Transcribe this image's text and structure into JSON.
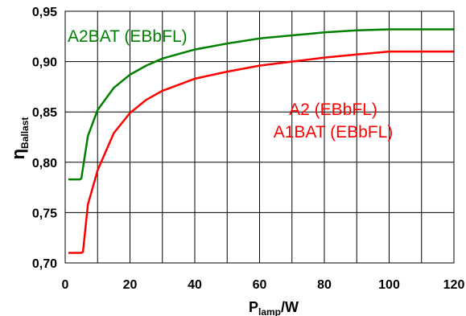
{
  "chart_data": {
    "type": "line",
    "title": "",
    "xlabel_main": "P",
    "xlabel_sub": "lamp",
    "xlabel_unit": "/W",
    "ylabel_main": "η",
    "ylabel_sub": "Ballast",
    "xlim": [
      0,
      120
    ],
    "ylim": [
      0.7,
      0.95
    ],
    "x_ticks": [
      0,
      20,
      40,
      60,
      80,
      100,
      120
    ],
    "x_tick_labels": [
      "0",
      "20",
      "40",
      "60",
      "80",
      "100",
      "120"
    ],
    "y_ticks": [
      0.7,
      0.75,
      0.8,
      0.85,
      0.9,
      0.95
    ],
    "y_tick_labels": [
      "0,70",
      "0,75",
      "0,80",
      "0,85",
      "0,90",
      "0,95"
    ],
    "grid": true,
    "series": [
      {
        "color": "#008000",
        "x": [
          1,
          4.6,
          5,
          7,
          10,
          15,
          20,
          25,
          30,
          40,
          50,
          60,
          70,
          80,
          90,
          100,
          110,
          120
        ],
        "y": [
          0.783,
          0.783,
          0.784,
          0.826,
          0.852,
          0.874,
          0.887,
          0.896,
          0.903,
          0.912,
          0.918,
          0.923,
          0.926,
          0.929,
          0.931,
          0.932,
          0.932,
          0.932
        ]
      },
      {
        "color": "#ff0000",
        "x": [
          1,
          5,
          5.5,
          7,
          10,
          15,
          20,
          25,
          30,
          40,
          50,
          60,
          70,
          80,
          90,
          100,
          110,
          120
        ],
        "y": [
          0.71,
          0.71,
          0.711,
          0.758,
          0.792,
          0.829,
          0.849,
          0.862,
          0.871,
          0.883,
          0.89,
          0.896,
          0.9,
          0.904,
          0.907,
          0.91,
          0.91,
          0.91
        ]
      }
    ],
    "annotations": [
      {
        "text": "A2BAT (EBbFL)",
        "color": "#008000"
      },
      {
        "text": "A2 (EBbFL)",
        "color": "#ff0000"
      },
      {
        "text": "A1BAT (EBbFL)",
        "color": "#ff0000"
      }
    ]
  }
}
